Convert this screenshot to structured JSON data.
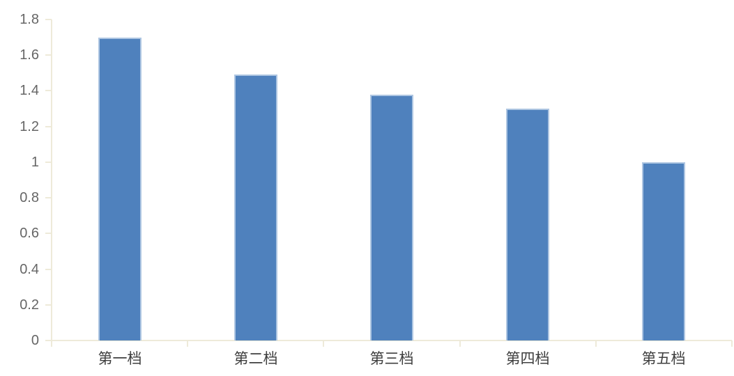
{
  "chart_data": {
    "type": "bar",
    "title": "",
    "xlabel": "",
    "ylabel": "",
    "categories": [
      "第一档",
      "第二档",
      "第三档",
      "第四档",
      "第五档"
    ],
    "values": [
      1.7,
      1.49,
      1.38,
      1.3,
      1.0
    ],
    "ylim": [
      0,
      1.8
    ],
    "ytick_values": [
      0,
      0.2,
      0.4,
      0.6,
      0.8,
      1,
      1.2,
      1.4,
      1.6,
      1.8
    ],
    "ytick_labels": [
      "0",
      "0.2",
      "0.4",
      "0.6",
      "0.8",
      "1",
      "1.2",
      "1.4",
      "1.6",
      "1.8"
    ],
    "grid": false,
    "legend": false,
    "colors": {
      "bar_fill": "#4f81bd",
      "bar_edge": "#aec6e2",
      "axis_line": "#eeead9",
      "y_tick_label": "#666666",
      "x_category_label": "#3f3f3f"
    }
  }
}
